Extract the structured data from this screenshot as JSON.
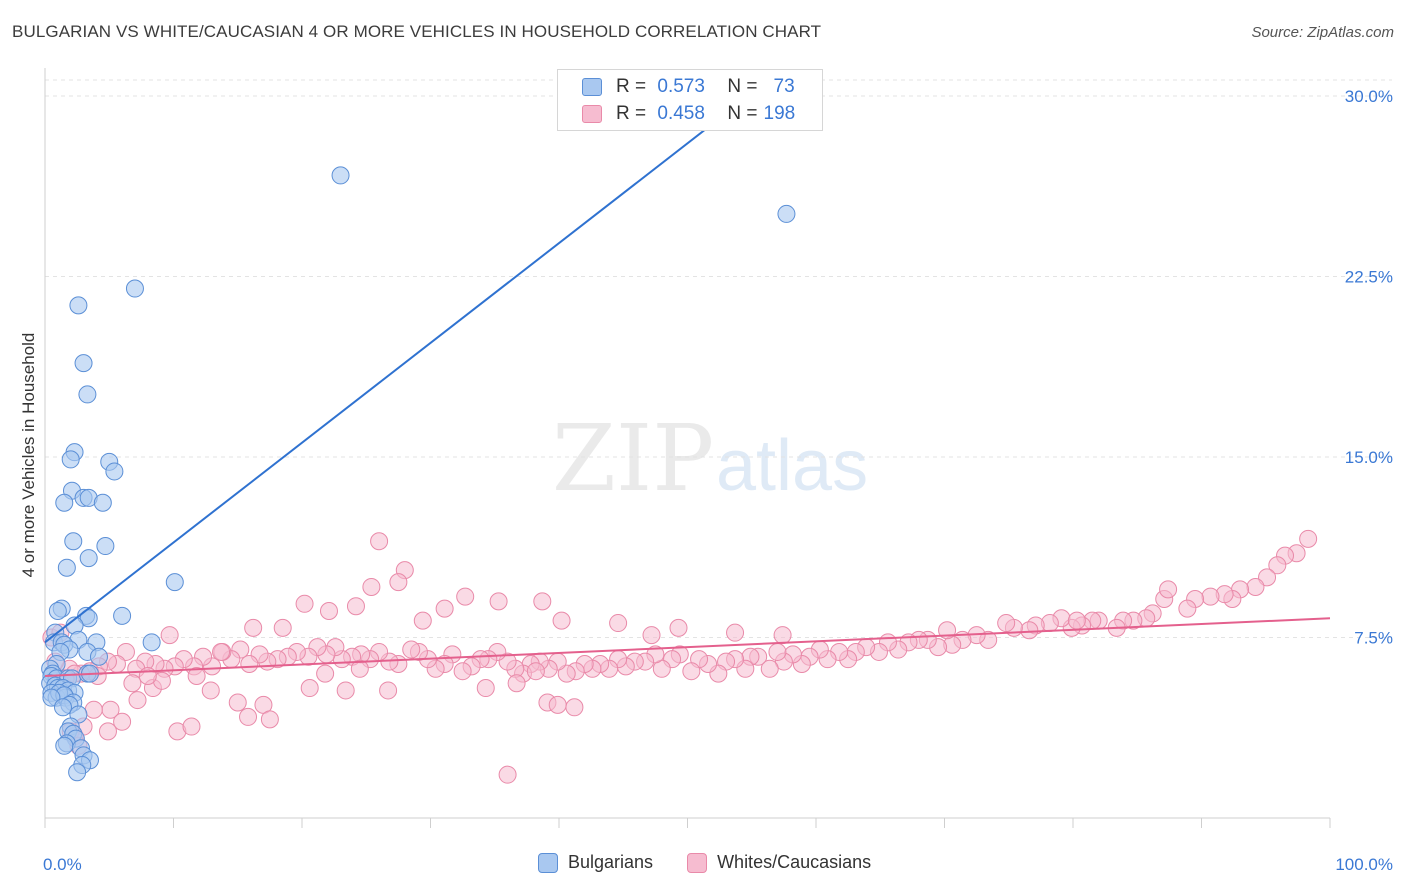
{
  "title": "BULGARIAN VS WHITE/CAUCASIAN 4 OR MORE VEHICLES IN HOUSEHOLD CORRELATION CHART",
  "source": "Source: ZipAtlas.com",
  "watermark": {
    "zip": "ZIP",
    "atlas": "atlas"
  },
  "legend": {
    "rows": [
      {
        "r_label": "R =",
        "r_value": "0.573",
        "n_label": "N =",
        "n_value": "73"
      },
      {
        "r_label": "R =",
        "r_value": "0.458",
        "n_label": "N =",
        "n_value": "198"
      }
    ]
  },
  "colors": {
    "blue_fill": "#a9c8f0",
    "blue_stroke": "#5b8fd6",
    "blue_line": "#2f72d0",
    "pink_fill": "#f6bcd0",
    "pink_stroke": "#e98aa9",
    "pink_line": "#e4608d",
    "tick_label": "#3a78d4",
    "grid": "#e3e3e3"
  },
  "chart_data": {
    "type": "scatter",
    "title": "BULGARIAN VS WHITE/CAUCASIAN 4 OR MORE VEHICLES IN HOUSEHOLD CORRELATION CHART",
    "xlabel": "",
    "ylabel": "4 or more Vehicles in Household",
    "xlim": [
      0,
      100
    ],
    "ylim": [
      0,
      31
    ],
    "x_tick_labels": [
      "0.0%",
      "100.0%"
    ],
    "y_ticks": [
      7.5,
      15.0,
      22.5,
      30.0
    ],
    "y_tick_labels": [
      "7.5%",
      "15.0%",
      "22.5%",
      "30.0%"
    ],
    "grid": "horizontal dashed",
    "legend_position": "top-center and bottom",
    "series": [
      {
        "name": "Bulgarians",
        "r": 0.573,
        "n": 73,
        "trend": {
          "x": [
            0,
            54.5
          ],
          "y": [
            7.3,
            29.9
          ]
        },
        "points": [
          [
            23.0,
            26.7
          ],
          [
            57.7,
            25.1
          ],
          [
            7.0,
            22.0
          ],
          [
            2.6,
            21.3
          ],
          [
            3.0,
            18.9
          ],
          [
            3.3,
            17.6
          ],
          [
            2.3,
            15.2
          ],
          [
            2.0,
            14.9
          ],
          [
            5.0,
            14.8
          ],
          [
            5.4,
            14.4
          ],
          [
            2.1,
            13.6
          ],
          [
            1.5,
            13.1
          ],
          [
            3.0,
            13.3
          ],
          [
            3.4,
            13.3
          ],
          [
            4.5,
            13.1
          ],
          [
            2.2,
            11.5
          ],
          [
            4.7,
            11.3
          ],
          [
            3.4,
            10.8
          ],
          [
            1.7,
            10.4
          ],
          [
            10.1,
            9.8
          ],
          [
            1.3,
            8.7
          ],
          [
            1.0,
            8.6
          ],
          [
            3.2,
            8.4
          ],
          [
            3.4,
            8.3
          ],
          [
            6.0,
            8.4
          ],
          [
            2.3,
            8.0
          ],
          [
            0.8,
            7.7
          ],
          [
            0.7,
            7.3
          ],
          [
            1.3,
            7.3
          ],
          [
            2.6,
            7.4
          ],
          [
            4.0,
            7.3
          ],
          [
            8.3,
            7.3
          ],
          [
            1.5,
            7.2
          ],
          [
            1.9,
            7.0
          ],
          [
            1.2,
            6.9
          ],
          [
            3.3,
            6.9
          ],
          [
            4.2,
            6.7
          ],
          [
            0.9,
            6.4
          ],
          [
            0.4,
            6.2
          ],
          [
            0.6,
            6.0
          ],
          [
            0.5,
            5.9
          ],
          [
            0.9,
            5.8
          ],
          [
            1.8,
            5.8
          ],
          [
            2.1,
            5.8
          ],
          [
            3.3,
            6.0
          ],
          [
            3.5,
            6.0
          ],
          [
            0.4,
            5.6
          ],
          [
            0.8,
            5.5
          ],
          [
            1.0,
            5.4
          ],
          [
            1.4,
            5.4
          ],
          [
            1.8,
            5.3
          ],
          [
            2.3,
            5.2
          ],
          [
            0.5,
            5.2
          ],
          [
            0.9,
            5.0
          ],
          [
            1.6,
            5.0
          ],
          [
            1.1,
            5.2
          ],
          [
            1.5,
            5.1
          ],
          [
            0.5,
            5.0
          ],
          [
            2.2,
            4.8
          ],
          [
            1.9,
            4.7
          ],
          [
            1.4,
            4.6
          ],
          [
            2.6,
            4.3
          ],
          [
            2.0,
            3.8
          ],
          [
            1.8,
            3.6
          ],
          [
            2.2,
            3.5
          ],
          [
            2.4,
            3.3
          ],
          [
            1.7,
            3.1
          ],
          [
            1.5,
            3.0
          ],
          [
            2.8,
            2.9
          ],
          [
            3.0,
            2.6
          ],
          [
            3.5,
            2.4
          ],
          [
            2.9,
            2.2
          ],
          [
            2.5,
            1.9
          ]
        ]
      },
      {
        "name": "Whites/Caucasians",
        "r": 0.458,
        "n": 198,
        "trend": {
          "x": [
            0,
            100
          ],
          "y": [
            5.9,
            8.3
          ]
        },
        "points": [
          [
            26.0,
            11.5
          ],
          [
            28.0,
            10.3
          ],
          [
            98.3,
            11.6
          ],
          [
            97.4,
            11.0
          ],
          [
            96.5,
            10.9
          ],
          [
            95.9,
            10.5
          ],
          [
            95.1,
            10.0
          ],
          [
            94.2,
            9.6
          ],
          [
            93.0,
            9.5
          ],
          [
            92.4,
            9.1
          ],
          [
            91.8,
            9.3
          ],
          [
            90.7,
            9.2
          ],
          [
            89.5,
            9.1
          ],
          [
            88.9,
            8.7
          ],
          [
            87.1,
            9.1
          ],
          [
            86.2,
            8.5
          ],
          [
            85.7,
            8.3
          ],
          [
            84.7,
            8.2
          ],
          [
            83.9,
            8.2
          ],
          [
            83.4,
            7.9
          ],
          [
            82.0,
            8.2
          ],
          [
            81.5,
            8.2
          ],
          [
            80.7,
            8.0
          ],
          [
            79.9,
            7.9
          ],
          [
            79.1,
            8.3
          ],
          [
            78.2,
            8.1
          ],
          [
            77.1,
            8.0
          ],
          [
            76.6,
            7.8
          ],
          [
            75.4,
            7.9
          ],
          [
            74.8,
            8.1
          ],
          [
            73.4,
            7.4
          ],
          [
            72.5,
            7.6
          ],
          [
            71.4,
            7.4
          ],
          [
            70.6,
            7.2
          ],
          [
            69.5,
            7.1
          ],
          [
            68.7,
            7.4
          ],
          [
            68.0,
            7.4
          ],
          [
            67.2,
            7.3
          ],
          [
            66.4,
            7.0
          ],
          [
            65.6,
            7.3
          ],
          [
            64.9,
            6.9
          ],
          [
            63.9,
            7.1
          ],
          [
            63.1,
            6.9
          ],
          [
            62.5,
            6.6
          ],
          [
            61.8,
            6.9
          ],
          [
            60.9,
            6.6
          ],
          [
            60.3,
            7.0
          ],
          [
            59.5,
            6.7
          ],
          [
            58.9,
            6.4
          ],
          [
            58.2,
            6.8
          ],
          [
            57.5,
            6.5
          ],
          [
            57.0,
            6.9
          ],
          [
            56.4,
            6.2
          ],
          [
            55.5,
            6.7
          ],
          [
            54.9,
            6.7
          ],
          [
            54.5,
            6.2
          ],
          [
            53.7,
            6.6
          ],
          [
            53.0,
            6.5
          ],
          [
            52.4,
            6.0
          ],
          [
            51.6,
            6.4
          ],
          [
            50.9,
            6.6
          ],
          [
            50.3,
            6.1
          ],
          [
            49.4,
            6.8
          ],
          [
            48.8,
            6.6
          ],
          [
            48.0,
            6.2
          ],
          [
            47.5,
            6.8
          ],
          [
            46.7,
            6.5
          ],
          [
            45.9,
            6.5
          ],
          [
            45.2,
            6.3
          ],
          [
            44.6,
            6.6
          ],
          [
            43.9,
            6.2
          ],
          [
            43.2,
            6.4
          ],
          [
            42.6,
            6.2
          ],
          [
            42.0,
            6.4
          ],
          [
            41.3,
            6.1
          ],
          [
            40.6,
            6.0
          ],
          [
            39.9,
            6.5
          ],
          [
            39.2,
            6.2
          ],
          [
            38.5,
            6.5
          ],
          [
            37.8,
            6.4
          ],
          [
            37.2,
            6.0
          ],
          [
            36.6,
            6.2
          ],
          [
            36.0,
            6.5
          ],
          [
            35.2,
            6.9
          ],
          [
            34.5,
            6.6
          ],
          [
            33.9,
            6.6
          ],
          [
            33.2,
            6.3
          ],
          [
            32.5,
            6.1
          ],
          [
            31.7,
            6.8
          ],
          [
            31.1,
            6.4
          ],
          [
            30.4,
            6.2
          ],
          [
            29.8,
            6.6
          ],
          [
            29.1,
            6.9
          ],
          [
            28.5,
            7.0
          ],
          [
            27.5,
            6.4
          ],
          [
            26.8,
            6.5
          ],
          [
            26.0,
            6.9
          ],
          [
            25.3,
            6.6
          ],
          [
            24.6,
            6.8
          ],
          [
            23.9,
            6.7
          ],
          [
            23.1,
            6.6
          ],
          [
            22.6,
            7.1
          ],
          [
            21.9,
            6.8
          ],
          [
            21.2,
            7.1
          ],
          [
            20.5,
            6.7
          ],
          [
            19.6,
            6.9
          ],
          [
            18.9,
            6.7
          ],
          [
            18.1,
            6.6
          ],
          [
            17.3,
            6.5
          ],
          [
            16.7,
            6.8
          ],
          [
            15.9,
            6.4
          ],
          [
            15.2,
            7.0
          ],
          [
            14.5,
            6.6
          ],
          [
            13.8,
            6.9
          ],
          [
            13.0,
            6.3
          ],
          [
            12.3,
            6.7
          ],
          [
            11.6,
            6.3
          ],
          [
            10.8,
            6.6
          ],
          [
            10.1,
            6.3
          ],
          [
            9.3,
            6.2
          ],
          [
            8.6,
            6.4
          ],
          [
            7.8,
            6.5
          ],
          [
            7.1,
            6.2
          ],
          [
            6.3,
            6.9
          ],
          [
            5.6,
            6.4
          ],
          [
            4.9,
            6.5
          ],
          [
            4.2,
            6.3
          ],
          [
            3.5,
            6.1
          ],
          [
            2.8,
            6.0
          ],
          [
            1.9,
            6.2
          ],
          [
            0.8,
            6.5
          ],
          [
            0.5,
            7.5
          ],
          [
            1.2,
            7.7
          ],
          [
            9.7,
            7.6
          ],
          [
            16.2,
            7.9
          ],
          [
            18.5,
            7.9
          ],
          [
            20.2,
            8.9
          ],
          [
            22.1,
            8.6
          ],
          [
            24.2,
            8.8
          ],
          [
            25.4,
            9.6
          ],
          [
            27.5,
            9.8
          ],
          [
            29.4,
            8.2
          ],
          [
            31.1,
            8.7
          ],
          [
            32.7,
            9.2
          ],
          [
            35.3,
            9.0
          ],
          [
            38.7,
            9.0
          ],
          [
            40.2,
            8.2
          ],
          [
            44.6,
            8.1
          ],
          [
            47.2,
            7.6
          ],
          [
            49.3,
            7.9
          ],
          [
            53.7,
            7.7
          ],
          [
            57.4,
            7.6
          ],
          [
            70.2,
            7.8
          ],
          [
            80.3,
            8.2
          ],
          [
            87.4,
            9.5
          ],
          [
            8.4,
            5.4
          ],
          [
            9.1,
            5.7
          ],
          [
            12.9,
            5.3
          ],
          [
            15.0,
            4.8
          ],
          [
            17.0,
            4.7
          ],
          [
            7.2,
            4.9
          ],
          [
            5.1,
            4.5
          ],
          [
            6.0,
            4.0
          ],
          [
            3.8,
            4.5
          ],
          [
            4.9,
            3.6
          ],
          [
            3.0,
            3.8
          ],
          [
            2.0,
            3.6
          ],
          [
            2.3,
            3.4
          ],
          [
            2.6,
            3.0
          ],
          [
            10.3,
            3.6
          ],
          [
            11.4,
            3.8
          ],
          [
            15.8,
            4.2
          ],
          [
            17.5,
            4.1
          ],
          [
            20.6,
            5.4
          ],
          [
            23.4,
            5.3
          ],
          [
            26.7,
            5.3
          ],
          [
            34.3,
            5.4
          ],
          [
            36.7,
            5.6
          ],
          [
            39.1,
            4.8
          ],
          [
            36.0,
            1.8
          ],
          [
            39.9,
            4.7
          ],
          [
            41.2,
            4.6
          ],
          [
            38.2,
            6.1
          ],
          [
            6.8,
            5.6
          ],
          [
            4.1,
            5.9
          ],
          [
            8.0,
            5.9
          ],
          [
            11.8,
            5.9
          ],
          [
            13.7,
            6.9
          ],
          [
            21.8,
            6.0
          ],
          [
            24.5,
            6.2
          ],
          [
            2.3,
            6.0
          ],
          [
            1.6,
            5.8
          ]
        ]
      }
    ]
  },
  "bottom_legend": [
    {
      "label": "Bulgarians"
    },
    {
      "label": "Whites/Caucasians"
    }
  ]
}
